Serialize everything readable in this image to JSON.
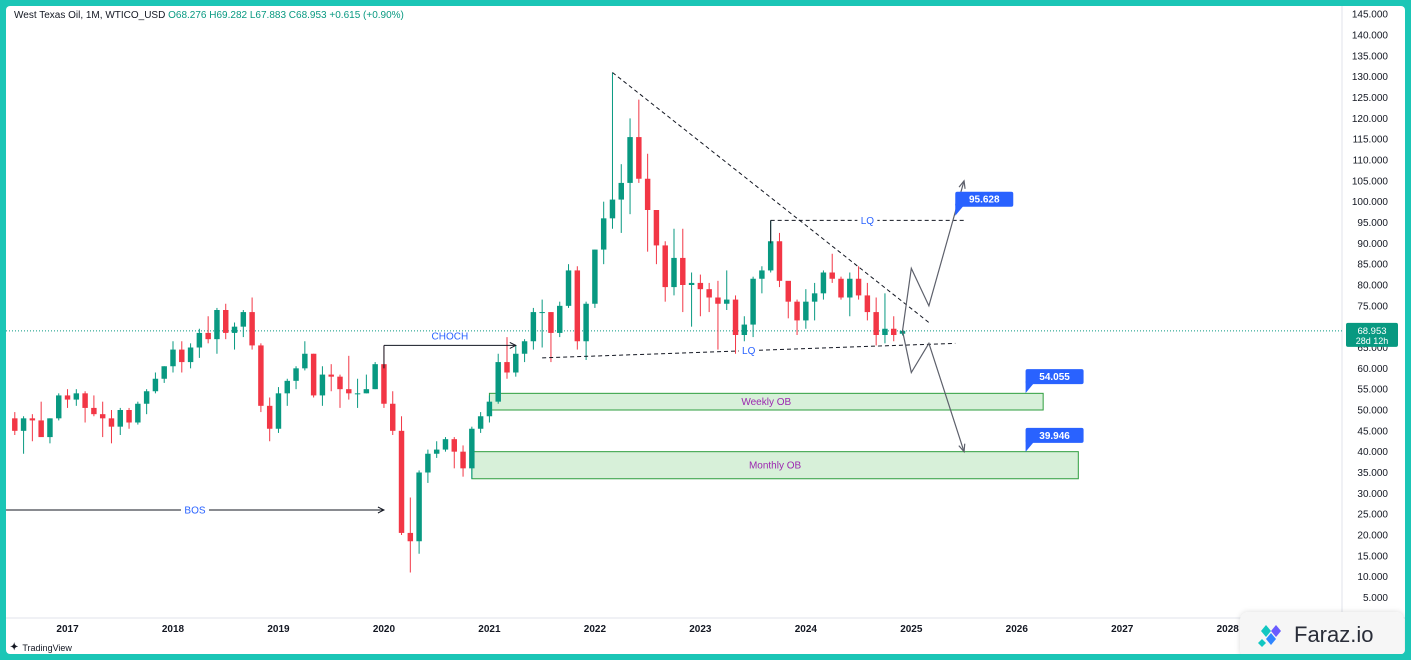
{
  "legend": {
    "symbol": "West Texas Oil, 1M, WTICO_USD",
    "open": "O68.276",
    "high": "H69.282",
    "low": "L67.883",
    "close": "C68.953",
    "change": "+0.615 (+0.90%)"
  },
  "price_badge": {
    "price": "68.953",
    "countdown": "28d 12h",
    "color": "#089981"
  },
  "brand": {
    "name": "TradingView",
    "icon": "tradingview-logo-icon"
  },
  "watermark": {
    "name": "Faraz.io",
    "icon": "faraz-logo-icon"
  },
  "colors": {
    "up": "#089981",
    "down": "#f23645",
    "label_blue": "#2962ff",
    "zone_fill": "#d7f0d9",
    "zone_border": "#2e9e3e",
    "zone_text": "#9c27b0",
    "background_frame": "#1bc6b6"
  },
  "chart_data": {
    "type": "candlestick",
    "title": "West Texas Oil, 1M, WTICO_USD",
    "y_axis": {
      "ticks": [
        "5.000",
        "10.000",
        "15.000",
        "20.000",
        "25.000",
        "30.000",
        "35.000",
        "40.000",
        "45.000",
        "50.000",
        "55.000",
        "60.000",
        "65.000",
        "70.000",
        "75.000",
        "80.000",
        "85.000",
        "90.000",
        "95.000",
        "100.000",
        "105.000",
        "110.000",
        "115.000",
        "120.000",
        "125.000",
        "130.000",
        "135.000",
        "140.000",
        "145.000"
      ],
      "range": [
        2,
        146
      ]
    },
    "x_axis": {
      "ticks": [
        "2017",
        "2018",
        "2019",
        "2020",
        "2021",
        "2022",
        "2023",
        "2024",
        "2025",
        "2026",
        "2027",
        "2028"
      ],
      "range": [
        "2016-06",
        "2029-02"
      ]
    },
    "candles": [
      {
        "t": "2016-07",
        "o": 48.0,
        "h": 49.5,
        "l": 44.0,
        "c": 45.0
      },
      {
        "t": "2016-08",
        "o": 45.0,
        "h": 48.5,
        "l": 39.5,
        "c": 48.0
      },
      {
        "t": "2016-09",
        "o": 48.0,
        "h": 49.0,
        "l": 42.5,
        "c": 47.5
      },
      {
        "t": "2016-10",
        "o": 47.5,
        "h": 52.0,
        "l": 44.0,
        "c": 43.5
      },
      {
        "t": "2016-11",
        "o": 43.5,
        "h": 48.0,
        "l": 42.0,
        "c": 48.0
      },
      {
        "t": "2016-12",
        "o": 48.0,
        "h": 54.0,
        "l": 47.5,
        "c": 53.5
      },
      {
        "t": "2017-01",
        "o": 53.5,
        "h": 55.0,
        "l": 50.5,
        "c": 52.5
      },
      {
        "t": "2017-02",
        "o": 52.5,
        "h": 55.0,
        "l": 51.0,
        "c": 54.0
      },
      {
        "t": "2017-03",
        "o": 54.0,
        "h": 54.5,
        "l": 47.0,
        "c": 50.5
      },
      {
        "t": "2017-04",
        "o": 50.5,
        "h": 53.5,
        "l": 48.5,
        "c": 49.0
      },
      {
        "t": "2017-05",
        "o": 49.0,
        "h": 52.0,
        "l": 43.5,
        "c": 48.0
      },
      {
        "t": "2017-06",
        "o": 48.0,
        "h": 50.0,
        "l": 42.0,
        "c": 46.0
      },
      {
        "t": "2017-07",
        "o": 46.0,
        "h": 50.5,
        "l": 44.0,
        "c": 50.0
      },
      {
        "t": "2017-08",
        "o": 50.0,
        "h": 50.5,
        "l": 45.5,
        "c": 47.0
      },
      {
        "t": "2017-09",
        "o": 47.0,
        "h": 52.0,
        "l": 46.5,
        "c": 51.5
      },
      {
        "t": "2017-10",
        "o": 51.5,
        "h": 55.0,
        "l": 49.0,
        "c": 54.5
      },
      {
        "t": "2017-11",
        "o": 54.5,
        "h": 59.0,
        "l": 54.0,
        "c": 57.5
      },
      {
        "t": "2017-12",
        "o": 57.5,
        "h": 60.5,
        "l": 56.5,
        "c": 60.5
      },
      {
        "t": "2018-01",
        "o": 60.5,
        "h": 66.5,
        "l": 59.0,
        "c": 64.5
      },
      {
        "t": "2018-02",
        "o": 64.5,
        "h": 66.5,
        "l": 59.0,
        "c": 61.5
      },
      {
        "t": "2018-03",
        "o": 61.5,
        "h": 66.0,
        "l": 60.0,
        "c": 65.0
      },
      {
        "t": "2018-04",
        "o": 65.0,
        "h": 69.5,
        "l": 62.5,
        "c": 68.5
      },
      {
        "t": "2018-05",
        "o": 68.5,
        "h": 72.5,
        "l": 66.0,
        "c": 67.0
      },
      {
        "t": "2018-06",
        "o": 67.0,
        "h": 74.5,
        "l": 63.5,
        "c": 74.0
      },
      {
        "t": "2018-07",
        "o": 74.0,
        "h": 75.5,
        "l": 67.0,
        "c": 68.5
      },
      {
        "t": "2018-08",
        "o": 68.5,
        "h": 71.0,
        "l": 64.5,
        "c": 70.0
      },
      {
        "t": "2018-09",
        "o": 70.0,
        "h": 74.0,
        "l": 67.5,
        "c": 73.5
      },
      {
        "t": "2018-10",
        "o": 73.5,
        "h": 77.0,
        "l": 64.5,
        "c": 65.5
      },
      {
        "t": "2018-11",
        "o": 65.5,
        "h": 66.0,
        "l": 49.5,
        "c": 51.0
      },
      {
        "t": "2018-12",
        "o": 51.0,
        "h": 53.0,
        "l": 42.5,
        "c": 45.5
      },
      {
        "t": "2019-01",
        "o": 45.5,
        "h": 55.5,
        "l": 44.5,
        "c": 54.0
      },
      {
        "t": "2019-02",
        "o": 54.0,
        "h": 57.5,
        "l": 51.0,
        "c": 57.0
      },
      {
        "t": "2019-03",
        "o": 57.0,
        "h": 60.5,
        "l": 55.0,
        "c": 60.0
      },
      {
        "t": "2019-04",
        "o": 60.0,
        "h": 66.5,
        "l": 59.5,
        "c": 63.5
      },
      {
        "t": "2019-05",
        "o": 63.5,
        "h": 63.5,
        "l": 53.0,
        "c": 53.5
      },
      {
        "t": "2019-06",
        "o": 53.5,
        "h": 60.5,
        "l": 51.0,
        "c": 58.5
      },
      {
        "t": "2019-07",
        "o": 58.5,
        "h": 61.0,
        "l": 54.5,
        "c": 58.0
      },
      {
        "t": "2019-08",
        "o": 58.0,
        "h": 58.5,
        "l": 50.5,
        "c": 55.0
      },
      {
        "t": "2019-09",
        "o": 55.0,
        "h": 63.0,
        "l": 52.5,
        "c": 54.0
      },
      {
        "t": "2019-10",
        "o": 54.0,
        "h": 57.5,
        "l": 50.5,
        "c": 54.0
      },
      {
        "t": "2019-11",
        "o": 54.0,
        "h": 58.5,
        "l": 54.0,
        "c": 55.0
      },
      {
        "t": "2019-12",
        "o": 55.0,
        "h": 61.5,
        "l": 55.0,
        "c": 61.0
      },
      {
        "t": "2020-01",
        "o": 61.0,
        "h": 65.5,
        "l": 50.5,
        "c": 51.5
      },
      {
        "t": "2020-02",
        "o": 51.5,
        "h": 54.5,
        "l": 44.0,
        "c": 45.0
      },
      {
        "t": "2020-03",
        "o": 45.0,
        "h": 48.5,
        "l": 20.0,
        "c": 20.5
      },
      {
        "t": "2020-04",
        "o": 20.5,
        "h": 29.0,
        "l": 11.0,
        "c": 18.5
      },
      {
        "t": "2020-05",
        "o": 18.5,
        "h": 35.5,
        "l": 15.5,
        "c": 35.0
      },
      {
        "t": "2020-06",
        "o": 35.0,
        "h": 40.5,
        "l": 32.5,
        "c": 39.5
      },
      {
        "t": "2020-07",
        "o": 39.5,
        "h": 42.5,
        "l": 38.5,
        "c": 40.5
      },
      {
        "t": "2020-08",
        "o": 40.5,
        "h": 43.5,
        "l": 40.0,
        "c": 43.0
      },
      {
        "t": "2020-09",
        "o": 43.0,
        "h": 43.5,
        "l": 36.0,
        "c": 40.0
      },
      {
        "t": "2020-10",
        "o": 40.0,
        "h": 41.5,
        "l": 34.0,
        "c": 36.0
      },
      {
        "t": "2020-11",
        "o": 36.0,
        "h": 46.0,
        "l": 33.5,
        "c": 45.5
      },
      {
        "t": "2020-12",
        "o": 45.5,
        "h": 49.5,
        "l": 44.5,
        "c": 48.5
      },
      {
        "t": "2021-01",
        "o": 48.5,
        "h": 53.5,
        "l": 47.0,
        "c": 52.0
      },
      {
        "t": "2021-02",
        "o": 52.0,
        "h": 63.5,
        "l": 51.5,
        "c": 61.5
      },
      {
        "t": "2021-03",
        "o": 61.5,
        "h": 67.5,
        "l": 57.5,
        "c": 59.0
      },
      {
        "t": "2021-04",
        "o": 59.0,
        "h": 65.5,
        "l": 58.0,
        "c": 63.5
      },
      {
        "t": "2021-05",
        "o": 63.5,
        "h": 67.0,
        "l": 61.5,
        "c": 66.5
      },
      {
        "t": "2021-06",
        "o": 66.5,
        "h": 74.5,
        "l": 64.5,
        "c": 73.5
      },
      {
        "t": "2021-07",
        "o": 73.5,
        "h": 76.5,
        "l": 65.0,
        "c": 73.5
      },
      {
        "t": "2021-08",
        "o": 73.5,
        "h": 73.5,
        "l": 61.5,
        "c": 68.5
      },
      {
        "t": "2021-09",
        "o": 68.5,
        "h": 76.0,
        "l": 67.5,
        "c": 75.0
      },
      {
        "t": "2021-10",
        "o": 75.0,
        "h": 85.0,
        "l": 74.5,
        "c": 83.5
      },
      {
        "t": "2021-11",
        "o": 83.5,
        "h": 84.5,
        "l": 64.5,
        "c": 66.5
      },
      {
        "t": "2021-12",
        "o": 66.5,
        "h": 76.0,
        "l": 62.0,
        "c": 75.5
      },
      {
        "t": "2022-01",
        "o": 75.5,
        "h": 88.5,
        "l": 74.5,
        "c": 88.5
      },
      {
        "t": "2022-02",
        "o": 88.5,
        "h": 100.0,
        "l": 85.0,
        "c": 96.0
      },
      {
        "t": "2022-03",
        "o": 96.0,
        "h": 131.0,
        "l": 93.5,
        "c": 100.5
      },
      {
        "t": "2022-04",
        "o": 100.5,
        "h": 109.0,
        "l": 92.5,
        "c": 104.5
      },
      {
        "t": "2022-05",
        "o": 104.5,
        "h": 120.0,
        "l": 97.0,
        "c": 115.5
      },
      {
        "t": "2022-06",
        "o": 115.5,
        "h": 124.5,
        "l": 104.5,
        "c": 105.5
      },
      {
        "t": "2022-07",
        "o": 105.5,
        "h": 111.5,
        "l": 88.0,
        "c": 98.0
      },
      {
        "t": "2022-08",
        "o": 98.0,
        "h": 97.5,
        "l": 85.0,
        "c": 89.5
      },
      {
        "t": "2022-09",
        "o": 89.5,
        "h": 90.5,
        "l": 76.0,
        "c": 79.5
      },
      {
        "t": "2022-10",
        "o": 79.5,
        "h": 93.5,
        "l": 77.5,
        "c": 86.5
      },
      {
        "t": "2022-11",
        "o": 86.5,
        "h": 93.5,
        "l": 73.5,
        "c": 80.0
      },
      {
        "t": "2022-12",
        "o": 80.0,
        "h": 83.0,
        "l": 70.0,
        "c": 80.5
      },
      {
        "t": "2023-01",
        "o": 80.5,
        "h": 82.5,
        "l": 72.5,
        "c": 79.0
      },
      {
        "t": "2023-02",
        "o": 79.0,
        "h": 80.5,
        "l": 73.5,
        "c": 77.0
      },
      {
        "t": "2023-03",
        "o": 77.0,
        "h": 81.0,
        "l": 64.5,
        "c": 75.5
      },
      {
        "t": "2023-04",
        "o": 75.5,
        "h": 83.5,
        "l": 74.0,
        "c": 76.5
      },
      {
        "t": "2023-05",
        "o": 76.5,
        "h": 77.5,
        "l": 63.5,
        "c": 68.0
      },
      {
        "t": "2023-06",
        "o": 68.0,
        "h": 72.5,
        "l": 66.5,
        "c": 70.5
      },
      {
        "t": "2023-07",
        "o": 70.5,
        "h": 82.0,
        "l": 67.5,
        "c": 81.5
      },
      {
        "t": "2023-08",
        "o": 81.5,
        "h": 84.5,
        "l": 78.0,
        "c": 83.5
      },
      {
        "t": "2023-09",
        "o": 83.5,
        "h": 95.5,
        "l": 83.0,
        "c": 90.5
      },
      {
        "t": "2023-10",
        "o": 90.5,
        "h": 92.5,
        "l": 79.5,
        "c": 81.0
      },
      {
        "t": "2023-11",
        "o": 81.0,
        "h": 80.0,
        "l": 72.0,
        "c": 76.0
      },
      {
        "t": "2023-12",
        "o": 76.0,
        "h": 76.5,
        "l": 68.0,
        "c": 71.5
      },
      {
        "t": "2024-01",
        "o": 71.5,
        "h": 79.0,
        "l": 69.5,
        "c": 76.0
      },
      {
        "t": "2024-02",
        "o": 76.0,
        "h": 80.5,
        "l": 71.5,
        "c": 78.0
      },
      {
        "t": "2024-03",
        "o": 78.0,
        "h": 83.5,
        "l": 76.5,
        "c": 83.0
      },
      {
        "t": "2024-04",
        "o": 83.0,
        "h": 87.5,
        "l": 80.5,
        "c": 81.5
      },
      {
        "t": "2024-05",
        "o": 81.5,
        "h": 82.0,
        "l": 76.5,
        "c": 77.0
      },
      {
        "t": "2024-06",
        "o": 77.0,
        "h": 83.0,
        "l": 72.5,
        "c": 81.5
      },
      {
        "t": "2024-07",
        "o": 81.5,
        "h": 84.5,
        "l": 76.5,
        "c": 77.5
      },
      {
        "t": "2024-08",
        "o": 77.5,
        "h": 80.5,
        "l": 71.5,
        "c": 73.5
      },
      {
        "t": "2024-09",
        "o": 73.5,
        "h": 77.0,
        "l": 65.5,
        "c": 68.0
      },
      {
        "t": "2024-10",
        "o": 68.0,
        "h": 78.0,
        "l": 66.0,
        "c": 69.5
      },
      {
        "t": "2024-11",
        "o": 69.5,
        "h": 72.5,
        "l": 66.5,
        "c": 68.0
      },
      {
        "t": "2024-12",
        "o": 68.3,
        "h": 69.3,
        "l": 67.9,
        "c": 69.0
      }
    ],
    "annotations": {
      "bos": {
        "label": "BOS",
        "price": 26.0,
        "from": "2016-06",
        "to": "2020-01"
      },
      "choch": {
        "label": "CHOCH",
        "price": 65.5,
        "from": "2020-01",
        "to": "2021-04"
      },
      "lq_top": {
        "label": "LQ",
        "price": 95.5,
        "from": "2023-09",
        "to": "2025-07"
      },
      "lq_bottom": {
        "label": "LQ",
        "from_price": 62.5,
        "to_price": 66.0,
        "from": "2021-07",
        "to": "2025-06"
      },
      "trendline": {
        "from_t": "2022-03",
        "from_price": 131.0,
        "to_t": "2025-03",
        "to_price": 71.0
      },
      "weekly_ob": {
        "label": "Weekly OB",
        "from": "2021-01",
        "to": "2026-04",
        "top": 54.0,
        "bottom": 50.0
      },
      "monthly_ob": {
        "label": "Monthly OB",
        "from": "2020-11",
        "to": "2026-08",
        "top": 40.0,
        "bottom": 33.5
      },
      "target_up": {
        "label": "95.628",
        "price": 95.628
      },
      "target_mid": {
        "label": "54.055",
        "price": 54.055
      },
      "target_down": {
        "label": "39.946",
        "price": 39.946
      },
      "path_up": [
        [
          "2024-12",
          69.0
        ],
        [
          "2025-01",
          84.0
        ],
        [
          "2025-03",
          75.0
        ],
        [
          "2025-07",
          105.0
        ]
      ],
      "path_down": [
        [
          "2024-12",
          69.0
        ],
        [
          "2025-01",
          59.0
        ],
        [
          "2025-03",
          66.0
        ],
        [
          "2025-07",
          40.0
        ]
      ]
    }
  }
}
